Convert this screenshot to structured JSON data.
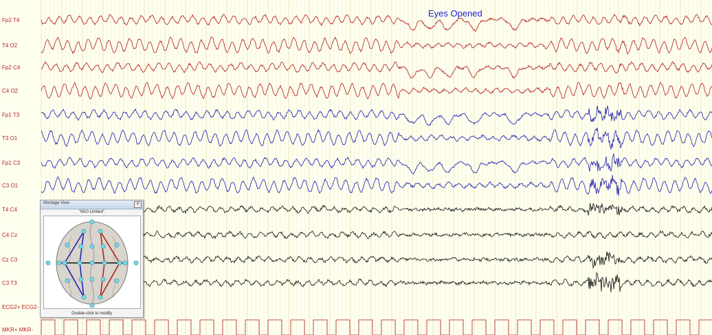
{
  "channels": [
    {
      "label": "Fp2 T4",
      "color": "#b01818"
    },
    {
      "label": "T4 O2",
      "color": "#b01818"
    },
    {
      "label": "Fp2 C4",
      "color": "#b01818"
    },
    {
      "label": "C4 O2",
      "color": "#b01818"
    },
    {
      "label": "Fp1 T3",
      "color": "#1a1ab0"
    },
    {
      "label": "T3 O1",
      "color": "#1a1ab0"
    },
    {
      "label": "Fp1 C3",
      "color": "#1a1ab0"
    },
    {
      "label": "C3 O1",
      "color": "#1a1ab0"
    },
    {
      "label": "T4 C4",
      "color": "#111111"
    },
    {
      "label": "C4 Cz",
      "color": "#111111"
    },
    {
      "label": "Cz C3",
      "color": "#111111"
    },
    {
      "label": "C3 T3",
      "color": "#111111"
    },
    {
      "label": "ECG2+ ECG2-",
      "color": "#b01818"
    },
    {
      "label": "MKR+ MKR-",
      "color": "#b01818"
    }
  ],
  "annotation": "Eyes Opened",
  "montage_window": {
    "title": "Montage View",
    "montage_name": "\"M10 Limited\"",
    "hint": "Double-click to modify",
    "close_label": "×"
  },
  "colors": {
    "background": "#fffff0",
    "grid": "#e6e2b4",
    "right_hemisphere": "#b01818",
    "left_hemisphere": "#1a1ab0",
    "central": "#111111",
    "annotation": "#1f1fd0"
  }
}
